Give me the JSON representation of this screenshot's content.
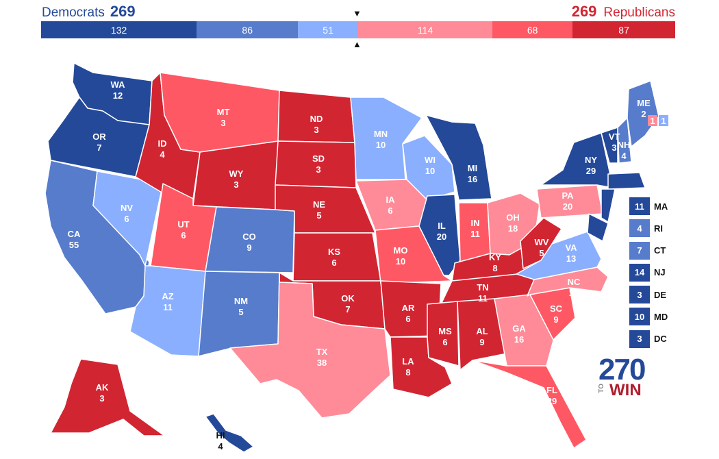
{
  "header": {
    "dem_label": "Democrats",
    "dem_total": "269",
    "rep_label": "Republicans",
    "rep_total": "269",
    "marker_top": "▼",
    "marker_bottom": "▲"
  },
  "tally": [
    {
      "value": 132,
      "color": "#244999"
    },
    {
      "value": 86,
      "color": "#577ccc"
    },
    {
      "value": 51,
      "color": "#8aafff"
    },
    {
      "value": 114,
      "color": "#ff8b98"
    },
    {
      "value": 68,
      "color": "#ff5865"
    },
    {
      "value": 87,
      "color": "#d22532"
    }
  ],
  "colors": {
    "safe_dem": "#244999",
    "likely_dem": "#577ccc",
    "lean_dem": "#8aafff",
    "lean_rep": "#ff8b98",
    "likely_rep": "#ff5865",
    "safe_rep": "#d22532"
  },
  "states": [
    {
      "abbr": "WA",
      "ev": "12",
      "rating": "safe_dem"
    },
    {
      "abbr": "OR",
      "ev": "7",
      "rating": "safe_dem"
    },
    {
      "abbr": "CA",
      "ev": "55",
      "rating": "likely_dem"
    },
    {
      "abbr": "NV",
      "ev": "6",
      "rating": "lean_dem"
    },
    {
      "abbr": "ID",
      "ev": "4",
      "rating": "safe_rep"
    },
    {
      "abbr": "MT",
      "ev": "3",
      "rating": "likely_rep"
    },
    {
      "abbr": "WY",
      "ev": "3",
      "rating": "safe_rep"
    },
    {
      "abbr": "UT",
      "ev": "6",
      "rating": "likely_rep"
    },
    {
      "abbr": "AZ",
      "ev": "11",
      "rating": "lean_dem"
    },
    {
      "abbr": "CO",
      "ev": "9",
      "rating": "likely_dem"
    },
    {
      "abbr": "NM",
      "ev": "5",
      "rating": "likely_dem"
    },
    {
      "abbr": "ND",
      "ev": "3",
      "rating": "safe_rep"
    },
    {
      "abbr": "SD",
      "ev": "3",
      "rating": "safe_rep"
    },
    {
      "abbr": "NE",
      "ev": "5",
      "rating": "safe_rep"
    },
    {
      "abbr": "KS",
      "ev": "6",
      "rating": "safe_rep"
    },
    {
      "abbr": "OK",
      "ev": "7",
      "rating": "safe_rep"
    },
    {
      "abbr": "TX",
      "ev": "38",
      "rating": "lean_rep"
    },
    {
      "abbr": "MN",
      "ev": "10",
      "rating": "lean_dem"
    },
    {
      "abbr": "IA",
      "ev": "6",
      "rating": "lean_rep"
    },
    {
      "abbr": "MO",
      "ev": "10",
      "rating": "likely_rep"
    },
    {
      "abbr": "AR",
      "ev": "6",
      "rating": "safe_rep"
    },
    {
      "abbr": "LA",
      "ev": "8",
      "rating": "safe_rep"
    },
    {
      "abbr": "WI",
      "ev": "10",
      "rating": "lean_dem"
    },
    {
      "abbr": "IL",
      "ev": "20",
      "rating": "safe_dem"
    },
    {
      "abbr": "MI",
      "ev": "16",
      "rating": "safe_dem"
    },
    {
      "abbr": "IN",
      "ev": "11",
      "rating": "likely_rep"
    },
    {
      "abbr": "OH",
      "ev": "18",
      "rating": "lean_rep"
    },
    {
      "abbr": "KY",
      "ev": "8",
      "rating": "safe_rep"
    },
    {
      "abbr": "TN",
      "ev": "11",
      "rating": "safe_rep"
    },
    {
      "abbr": "MS",
      "ev": "6",
      "rating": "safe_rep"
    },
    {
      "abbr": "AL",
      "ev": "9",
      "rating": "safe_rep"
    },
    {
      "abbr": "GA",
      "ev": "16",
      "rating": "lean_rep"
    },
    {
      "abbr": "FL",
      "ev": "29",
      "rating": "likely_rep"
    },
    {
      "abbr": "SC",
      "ev": "9",
      "rating": "likely_rep"
    },
    {
      "abbr": "NC",
      "ev": "15",
      "rating": "lean_rep"
    },
    {
      "abbr": "VA",
      "ev": "13",
      "rating": "lean_dem"
    },
    {
      "abbr": "WV",
      "ev": "5",
      "rating": "safe_rep"
    },
    {
      "abbr": "PA",
      "ev": "20",
      "rating": "lean_rep"
    },
    {
      "abbr": "NY",
      "ev": "29",
      "rating": "safe_dem"
    },
    {
      "abbr": "VT",
      "ev": "3",
      "rating": "safe_dem"
    },
    {
      "abbr": "NH",
      "ev": "4",
      "rating": "likely_dem"
    },
    {
      "abbr": "ME",
      "ev": "2",
      "rating": "likely_dem"
    },
    {
      "abbr": "AK",
      "ev": "3",
      "rating": "safe_rep"
    },
    {
      "abbr": "HI",
      "ev": "4",
      "rating": "safe_dem"
    }
  ],
  "maine_districts": [
    {
      "ev": "1",
      "rating": "lean_rep"
    },
    {
      "ev": "1",
      "rating": "lean_dem"
    }
  ],
  "small_states": [
    {
      "abbr": "MA",
      "ev": "11",
      "rating": "safe_dem"
    },
    {
      "abbr": "RI",
      "ev": "4",
      "rating": "likely_dem"
    },
    {
      "abbr": "CT",
      "ev": "7",
      "rating": "likely_dem"
    },
    {
      "abbr": "NJ",
      "ev": "14",
      "rating": "safe_dem"
    },
    {
      "abbr": "DE",
      "ev": "3",
      "rating": "safe_dem"
    },
    {
      "abbr": "MD",
      "ev": "10",
      "rating": "safe_dem"
    },
    {
      "abbr": "DC",
      "ev": "3",
      "rating": "safe_dem"
    }
  ],
  "logo": {
    "number": "270",
    "small": "TO",
    "word": "WIN"
  }
}
